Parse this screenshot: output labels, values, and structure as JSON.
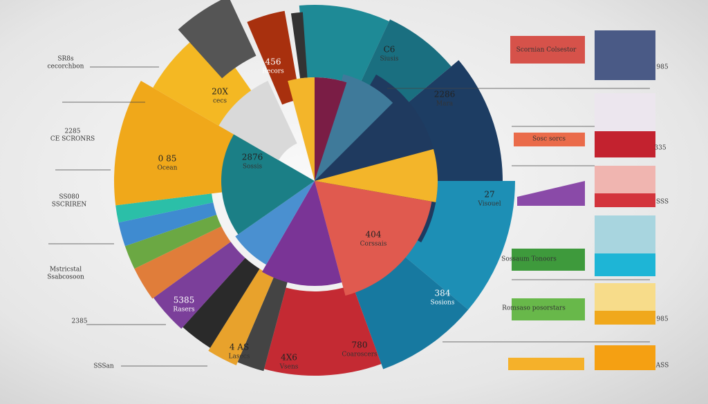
{
  "left_labels": [
    {
      "value": "SR8s",
      "caption": "cecorchbon"
    },
    {
      "value": "2285",
      "caption": "CE SCRONRS"
    },
    {
      "value": "SS080",
      "caption": "SSCRIREN"
    },
    {
      "value": "Mstricstal",
      "caption": "Ssabcosoon"
    },
    {
      "value": "2385"
    },
    {
      "value": "SSSan"
    }
  ],
  "wedge_labels": [
    {
      "value": "456",
      "caption": "Recors"
    },
    {
      "value": "20X",
      "caption": "cecs"
    },
    {
      "value": "0 85",
      "caption": "Ocean"
    },
    {
      "value": "2876",
      "caption": "Sossis"
    },
    {
      "value": "C6",
      "caption": "Siusis"
    },
    {
      "value": "2286",
      "caption": "Mara"
    },
    {
      "value": "27",
      "caption": "Visouel"
    },
    {
      "value": "404",
      "caption": "Corssais"
    },
    {
      "value": "384",
      "caption": "Sosions"
    },
    {
      "value": "780",
      "caption": "Coaroscers"
    },
    {
      "value": "4X6",
      "caption": "Vsens"
    },
    {
      "value": "4 AS",
      "caption": "Lasecs"
    },
    {
      "value": "5385",
      "caption": "Rasers"
    }
  ],
  "right_labels": [
    "Scornian Colsestor",
    "985",
    "Sosc sorcs",
    "335",
    "SSS",
    "Sossaum Tonoors",
    "Romsaso posorstars",
    "985",
    "ASS"
  ]
}
